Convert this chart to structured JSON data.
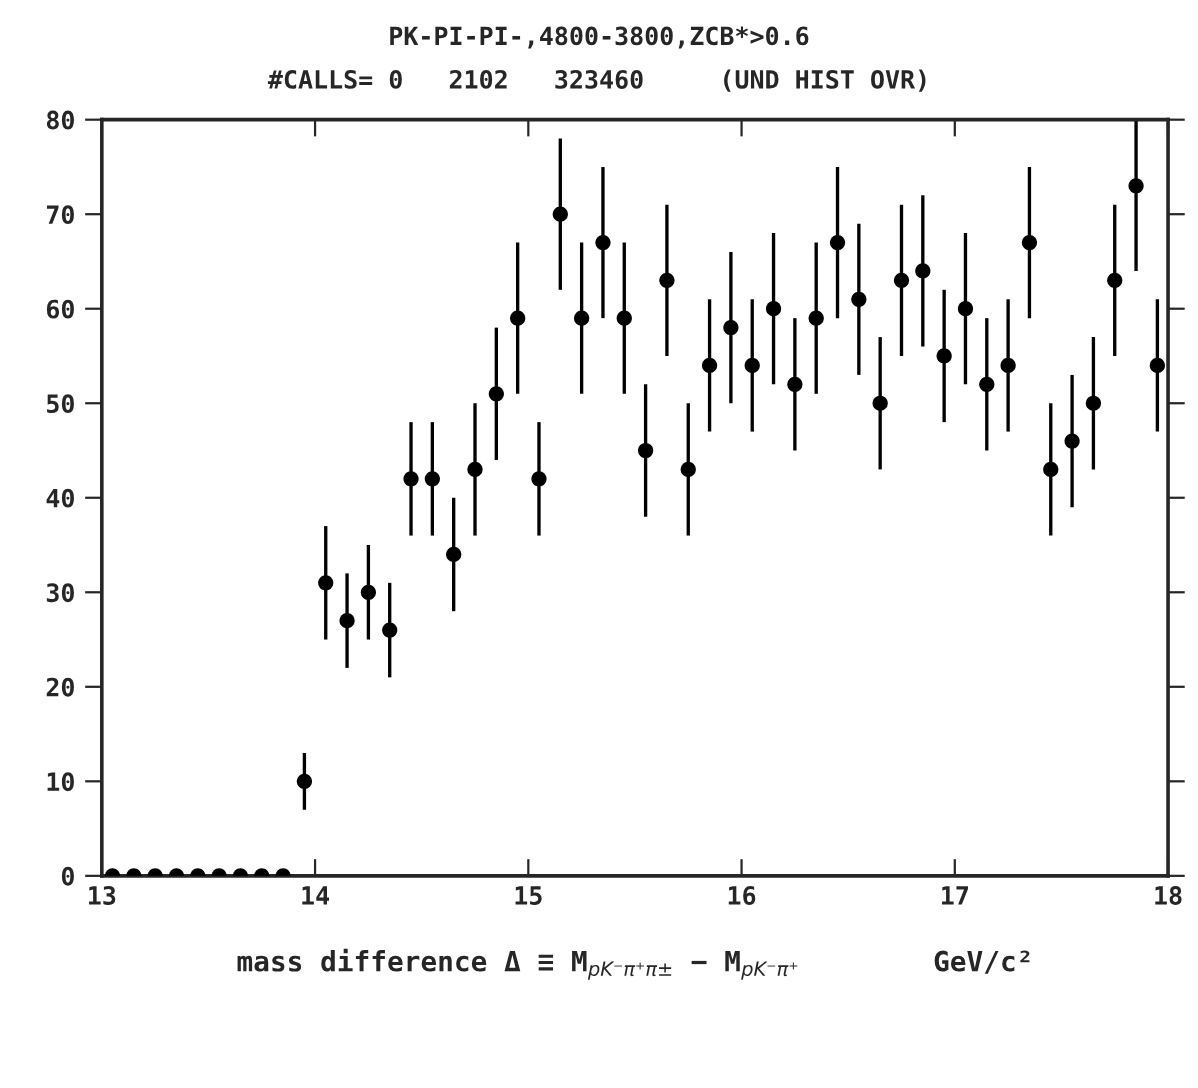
{
  "chart_data": {
    "type": "scatter",
    "title": "PK-PI-PI-,4800-3800,ZCB*>0.6",
    "subtitle": "#CALLS= 0   2102   323460     (UND HIST OVR)",
    "xlabel": "mass difference Δ ≡ M$_{pK⁻π⁺π±}$ − M$_{pK⁻π⁺}$        GeV/c²",
    "series": [
      {
        "color": "#000000",
        "x": [
          13.05,
          13.15,
          13.25,
          13.35,
          13.45,
          13.55,
          13.65,
          13.75,
          13.85,
          13.95,
          14.05,
          14.15,
          14.25,
          14.35,
          14.45,
          14.55,
          14.65,
          14.75,
          14.85,
          14.95,
          15.05,
          15.15,
          15.25,
          15.35,
          15.45,
          15.55,
          15.65,
          15.75,
          15.85,
          15.95,
          16.05,
          16.15,
          16.25,
          16.35,
          16.45,
          16.55,
          16.65,
          16.75,
          16.85,
          16.95,
          17.05,
          17.15,
          17.25,
          17.35,
          17.45,
          17.55,
          17.65,
          17.75,
          17.85,
          17.95
        ],
        "values": [
          0,
          0,
          0,
          0,
          0,
          0,
          0,
          0,
          0,
          10,
          31,
          27,
          30,
          26,
          42,
          42,
          34,
          43,
          51,
          59,
          42,
          70,
          59,
          67,
          59,
          45,
          63,
          43,
          54,
          58,
          54,
          60,
          52,
          59,
          67,
          61,
          50,
          63,
          64,
          55,
          60,
          52,
          54,
          67,
          43,
          46,
          50,
          63,
          73,
          54
        ],
        "errors": [
          null,
          null,
          null,
          null,
          null,
          null,
          null,
          null,
          null,
          3,
          6,
          5,
          5,
          5,
          6,
          6,
          6,
          7,
          7,
          8,
          6,
          8,
          8,
          8,
          8,
          7,
          8,
          7,
          7,
          8,
          7,
          8,
          7,
          8,
          8,
          8,
          7,
          8,
          8,
          7,
          8,
          7,
          7,
          8,
          7,
          7,
          7,
          8,
          9,
          7
        ]
      }
    ],
    "xlim": [
      13,
      18
    ],
    "xticks": [
      13,
      14,
      15,
      16,
      17,
      18
    ],
    "ylim": [
      0,
      80
    ],
    "yticks": [
      0,
      10,
      20,
      30,
      40,
      50,
      60,
      70,
      80
    ],
    "marker": "circle",
    "grid": false
  }
}
